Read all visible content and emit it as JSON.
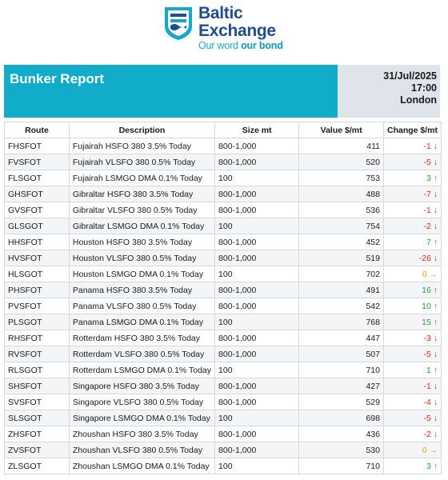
{
  "brand": {
    "name_line1": "Baltic",
    "name_line2": "Exchange",
    "tagline_plain": "Our word ",
    "tagline_bold": "our bond"
  },
  "report": {
    "title": "Bunker Report",
    "date": "31/Jul/2025",
    "time": "17:00",
    "location": "London"
  },
  "table": {
    "headers": [
      "Route",
      "Description",
      "Size mt",
      "Value $/mt",
      "Change $/mt"
    ],
    "rows": [
      {
        "route": "FHSFOT",
        "desc": "Fujairah HSFO 380 3.5% Today",
        "size": "800-1,000",
        "value": "411",
        "change": "-1",
        "dir": "down"
      },
      {
        "route": "FVSFOT",
        "desc": "Fujairah VLSFO 380 0.5% Today",
        "size": "800-1,000",
        "value": "520",
        "change": "-5",
        "dir": "down"
      },
      {
        "route": "FLSGOT",
        "desc": "Fujairah LSMGO DMA 0.1% Today",
        "size": "100",
        "value": "753",
        "change": "3",
        "dir": "up"
      },
      {
        "route": "GHSFOT",
        "desc": "Gibraltar HSFO 380 3.5% Today",
        "size": "800-1,000",
        "value": "488",
        "change": "-7",
        "dir": "down"
      },
      {
        "route": "GVSFOT",
        "desc": "Gibraltar VLSFO 380 0.5% Today",
        "size": "800-1,000",
        "value": "536",
        "change": "-1",
        "dir": "down"
      },
      {
        "route": "GLSGOT",
        "desc": "Gibraltar LSMGO DMA 0.1% Today",
        "size": "100",
        "value": "754",
        "change": "-2",
        "dir": "down"
      },
      {
        "route": "HHSFOT",
        "desc": "Houston HSFO 380 3.5% Today",
        "size": "800-1,000",
        "value": "452",
        "change": "7",
        "dir": "up"
      },
      {
        "route": "HVSFOT",
        "desc": "Houston VLSFO 380 0.5% Today",
        "size": "800-1,000",
        "value": "519",
        "change": "-26",
        "dir": "down"
      },
      {
        "route": "HLSGOT",
        "desc": "Houston LSMGO DMA 0.1% Today",
        "size": "100",
        "value": "702",
        "change": "0",
        "dir": "flat"
      },
      {
        "route": "PHSFOT",
        "desc": "Panama HSFO 380 3.5% Today",
        "size": "800-1,000",
        "value": "491",
        "change": "16",
        "dir": "up"
      },
      {
        "route": "PVSFOT",
        "desc": "Panama VLSFO 380 0.5% Today",
        "size": "800-1,000",
        "value": "542",
        "change": "10",
        "dir": "up"
      },
      {
        "route": "PLSGOT",
        "desc": "Panama LSMGO DMA 0.1% Today",
        "size": "100",
        "value": "768",
        "change": "15",
        "dir": "up"
      },
      {
        "route": "RHSFOT",
        "desc": "Rotterdam HSFO 380 3.5% Today",
        "size": "800-1,000",
        "value": "447",
        "change": "-3",
        "dir": "down"
      },
      {
        "route": "RVSFOT",
        "desc": "Rotterdam VLSFO 380 0.5% Today",
        "size": "800-1,000",
        "value": "507",
        "change": "-5",
        "dir": "down"
      },
      {
        "route": "RLSGOT",
        "desc": "Rotterdam LSMGO DMA 0.1% Today",
        "size": "100",
        "value": "710",
        "change": "1",
        "dir": "up"
      },
      {
        "route": "SHSFOT",
        "desc": "Singapore HSFO 380 3.5% Today",
        "size": "800-1,000",
        "value": "427",
        "change": "-1",
        "dir": "down"
      },
      {
        "route": "SVSFOT",
        "desc": "Singapore VLSFO 380 0.5% Today",
        "size": "800-1,000",
        "value": "529",
        "change": "-4",
        "dir": "down"
      },
      {
        "route": "SLSGOT",
        "desc": "Singapore LSMGO DMA 0.1% Today",
        "size": "100",
        "value": "698",
        "change": "-5",
        "dir": "down"
      },
      {
        "route": "ZHSFOT",
        "desc": "Zhoushan HSFO 380 3.5% Today",
        "size": "800-1,000",
        "value": "436",
        "change": "-2",
        "dir": "down"
      },
      {
        "route": "ZVSFOT",
        "desc": "Zhoushan VLSFO 380 0.5% Today",
        "size": "800-1,000",
        "value": "530",
        "change": "0",
        "dir": "flat"
      },
      {
        "route": "ZLSGOT",
        "desc": "Zhoushan LSMGO DMA 0.1% Today",
        "size": "100",
        "value": "710",
        "change": "3",
        "dir": "up"
      }
    ]
  },
  "colors": {
    "accent": "#11acc9",
    "brand_blue": "#1f4e8c",
    "down": "#e1261c",
    "up": "#2a9d3a",
    "flat": "#f0a000"
  }
}
